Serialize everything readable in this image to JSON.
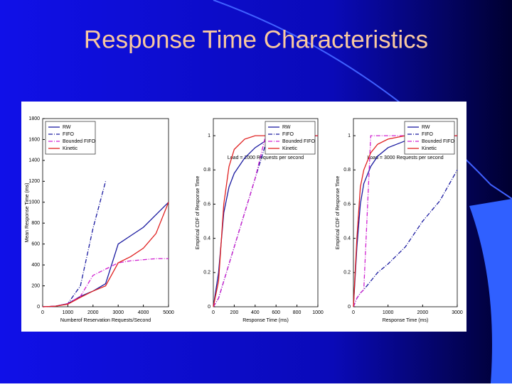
{
  "title": "Response Time Characteristics",
  "chart_data": [
    {
      "type": "line",
      "xlabel": "Numberof Reservation Requests/Second",
      "ylabel": "Mean Response Time (ms)",
      "x": [
        0,
        500,
        1000,
        1500,
        2000,
        2500,
        3000,
        3500,
        4000,
        4500,
        5000
      ],
      "xlim": [
        0,
        5000
      ],
      "xticks": [
        0,
        1000,
        2000,
        3000,
        4000,
        5000
      ],
      "ylim": [
        0,
        1800
      ],
      "yticks": [
        0,
        200,
        400,
        600,
        800,
        1000,
        1200,
        1400,
        1600,
        1800
      ],
      "legend": "upper left",
      "series": [
        {
          "name": "RW",
          "color": "#1a1aa0",
          "dash": "solid",
          "values": [
            0,
            5,
            30,
            100,
            150,
            220,
            600,
            680,
            760,
            880,
            1000
          ]
        },
        {
          "name": "FIFO",
          "color": "#1a1aa0",
          "dash": "dashdot",
          "values": [
            0,
            5,
            30,
            200,
            750,
            1200,
            null,
            null,
            null,
            null,
            null
          ]
        },
        {
          "name": "Bounded FIFO",
          "color": "#d020d0",
          "dash": "dashdot",
          "values": [
            0,
            5,
            30,
            100,
            300,
            360,
            420,
            440,
            450,
            460,
            460
          ]
        },
        {
          "name": "Kinetic",
          "color": "#e02020",
          "dash": "solid",
          "values": [
            0,
            5,
            25,
            90,
            150,
            200,
            420,
            480,
            560,
            700,
            1000
          ]
        }
      ]
    },
    {
      "type": "line",
      "xlabel": "Response Time (ms)",
      "ylabel": "Empirical CDF of Response Time",
      "annotation": "Load = 2000 Requests per second",
      "x": [
        0,
        50,
        100,
        150,
        200,
        300,
        400,
        500,
        600,
        800,
        1000
      ],
      "xlim": [
        0,
        1000
      ],
      "xticks": [
        0,
        200,
        400,
        600,
        800,
        1000
      ],
      "ylim": [
        0,
        1.1
      ],
      "yticks": [
        0,
        0.2,
        0.4,
        0.6,
        0.8,
        1
      ],
      "legend": "upper right",
      "series": [
        {
          "name": "RW",
          "color": "#1a1aa0",
          "dash": "solid",
          "values": [
            0,
            0.2,
            0.55,
            0.7,
            0.78,
            0.87,
            0.93,
            0.97,
            0.99,
            1,
            1
          ]
        },
        {
          "name": "FIFO",
          "color": "#1a1aa0",
          "dash": "dashdot",
          "values": [
            0,
            0.05,
            0.15,
            0.25,
            0.35,
            0.55,
            0.75,
            0.95,
            1,
            1,
            1
          ]
        },
        {
          "name": "Bounded FIFO",
          "color": "#d020d0",
          "dash": "dashdot",
          "values": [
            0,
            0.05,
            0.15,
            0.25,
            0.35,
            0.55,
            0.75,
            1,
            1,
            1,
            1
          ]
        },
        {
          "name": "Kinetic",
          "color": "#e02020",
          "dash": "solid",
          "values": [
            0,
            0.15,
            0.6,
            0.82,
            0.92,
            0.98,
            1,
            1,
            1,
            1,
            1
          ]
        }
      ]
    },
    {
      "type": "line",
      "xlabel": "Response Time (ms)",
      "ylabel": "Empirical CDF of Response Time",
      "annotation": "Load = 3000 Requests per second",
      "x": [
        0,
        100,
        200,
        300,
        500,
        700,
        1000,
        1500,
        2000,
        2500,
        3000
      ],
      "xlim": [
        0,
        3000
      ],
      "xticks": [
        0,
        1000,
        2000,
        3000
      ],
      "ylim": [
        0,
        1.1
      ],
      "yticks": [
        0,
        0.2,
        0.4,
        0.6,
        0.8,
        1
      ],
      "legend": "upper right",
      "series": [
        {
          "name": "RW",
          "color": "#1a1aa0",
          "dash": "solid",
          "values": [
            0,
            0.35,
            0.6,
            0.72,
            0.82,
            0.88,
            0.93,
            0.97,
            0.99,
            1,
            1
          ]
        },
        {
          "name": "FIFO",
          "color": "#1a1aa0",
          "dash": "dashdot",
          "values": [
            0,
            0.05,
            0.08,
            0.1,
            0.15,
            0.2,
            0.25,
            0.35,
            0.5,
            0.62,
            0.8
          ]
        },
        {
          "name": "Bounded FIFO",
          "color": "#d020d0",
          "dash": "dashdot",
          "values": [
            0,
            0.05,
            0.08,
            0.1,
            1,
            1,
            1,
            1,
            1,
            1,
            1
          ]
        },
        {
          "name": "Kinetic",
          "color": "#e02020",
          "dash": "solid",
          "values": [
            0,
            0.4,
            0.7,
            0.8,
            0.9,
            0.95,
            0.98,
            1,
            1,
            1,
            1
          ]
        }
      ]
    }
  ]
}
